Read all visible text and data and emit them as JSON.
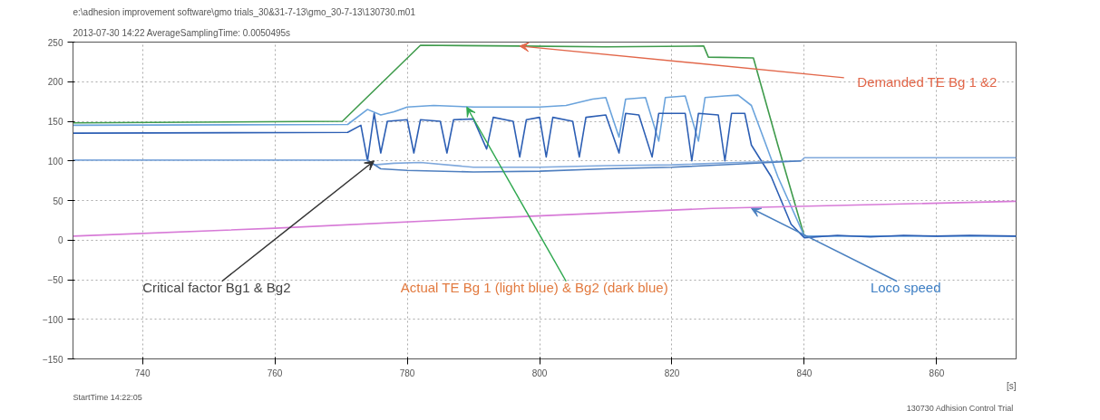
{
  "chart_data": {
    "type": "line",
    "title": "e:\\adhesion improvement software\\gmo trials_30&31-7-13\\gmo_30-7-13\\130730.m01",
    "subtitle": "2013-07-30 14:22   AverageSamplingTime: 0.0050495s",
    "xlabel": "[s]",
    "xlim": [
      729.5,
      872
    ],
    "ylim": [
      -150,
      250
    ],
    "xticks": [
      740,
      760,
      780,
      800,
      820,
      840,
      860
    ],
    "yticks": [
      -150,
      -100,
      -50,
      0,
      50,
      100,
      150,
      200,
      250
    ],
    "grid": true,
    "series": [
      {
        "color": "#3f9b4c",
        "x": [
          729.5,
          770.2,
          782,
          797,
          810,
          824.8,
          825.5,
          832.3,
          836,
          840
        ],
        "values": [
          148,
          150,
          246,
          245,
          244,
          245,
          231,
          230,
          120,
          5
        ]
      },
      {
        "color": "#6aa3dc",
        "x": [
          729.5,
          771,
          774,
          776,
          778,
          780,
          784,
          790,
          796,
          800,
          804,
          808,
          810,
          812,
          813,
          816,
          818,
          819,
          822,
          824,
          825,
          828,
          830,
          832,
          836,
          840,
          872
        ],
        "values": [
          145,
          146,
          165,
          158,
          162,
          168,
          170,
          168,
          168,
          168,
          170,
          178,
          180,
          130,
          178,
          180,
          125,
          180,
          182,
          125,
          180,
          182,
          183,
          170,
          80,
          5,
          5
        ]
      },
      {
        "color": "#2d5fb4",
        "x": [
          729.5,
          771,
          773,
          774,
          775,
          776,
          777,
          780,
          781,
          782,
          785,
          786,
          787,
          790,
          792,
          793,
          796,
          797,
          798,
          800,
          801,
          802,
          805,
          806,
          807,
          810,
          812,
          813,
          815,
          817,
          818,
          822,
          823,
          824,
          827,
          828,
          829,
          831,
          832,
          835,
          838,
          840,
          845,
          850,
          855,
          860,
          865,
          872
        ],
        "values": [
          135,
          136,
          145,
          100,
          160,
          110,
          150,
          152,
          110,
          152,
          150,
          110,
          152,
          153,
          115,
          155,
          150,
          105,
          152,
          155,
          105,
          155,
          150,
          105,
          155,
          158,
          110,
          160,
          158,
          105,
          160,
          160,
          100,
          160,
          158,
          100,
          160,
          160,
          120,
          80,
          20,
          3,
          6,
          4,
          6,
          5,
          6,
          5
        ]
      },
      {
        "color": "#7fa8dc",
        "x": [
          729.5,
          774,
          775,
          778,
          782,
          790,
          800,
          810,
          820,
          830,
          839.5,
          840,
          872
        ],
        "values": [
          101,
          101,
          95,
          97,
          98,
          92,
          92,
          94,
          95,
          98,
          100,
          104,
          104
        ]
      },
      {
        "color": "#4f7fbf",
        "x": [
          774,
          776,
          780,
          790,
          800,
          810,
          820,
          830,
          839.5
        ],
        "values": [
          101,
          90,
          88,
          86,
          87,
          90,
          92,
          96,
          100
        ]
      },
      {
        "color": "#d77ad7",
        "x": [
          729.5,
          760,
          790,
          826,
          872
        ],
        "values": [
          5,
          15,
          27,
          40,
          49
        ]
      }
    ],
    "annotations": [
      {
        "text": "Demanded TE Bg 1 &2",
        "x": 797,
        "y": 245
      },
      {
        "text": "Critical factor Bg1 & Bg2",
        "x": 775,
        "y": 100
      },
      {
        "text": "Actual TE Bg 1 (light blue) & Bg2 (dark blue)",
        "x": 789,
        "y": 168
      },
      {
        "text": "Loco speed",
        "x": 832,
        "y": 40
      },
      "StartTime  14:22:05",
      "130730  Adhision Control Trial"
    ]
  }
}
